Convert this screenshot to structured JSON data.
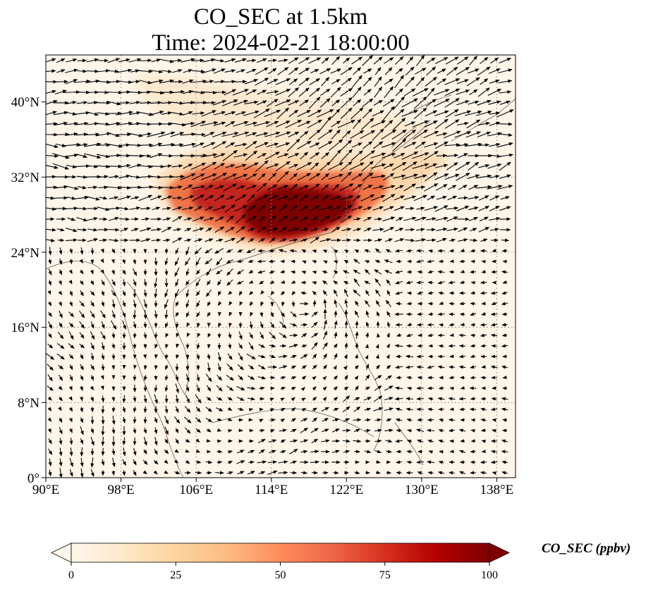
{
  "title": {
    "line1": "CO_SEC at 1.5km",
    "line2": "Time: 2024-02-21 18:00:00"
  },
  "map": {
    "lon_range": [
      90,
      140
    ],
    "lat_range": [
      0,
      45
    ],
    "lon_ticks": [
      "90°E",
      "98°E",
      "106°E",
      "114°E",
      "122°E",
      "130°E",
      "138°E"
    ],
    "lat_ticks": [
      "0°",
      "8°N",
      "16°N",
      "24°N",
      "32°N",
      "40°N"
    ],
    "gridlines": "dotted",
    "coastlines": true,
    "vectors": "wind"
  },
  "colorbar": {
    "label": "CO_SEC (ppbv)",
    "ticks": [
      "0",
      "25",
      "50",
      "75",
      "100"
    ],
    "range": [
      0,
      100
    ],
    "extend": "both",
    "colormap": "OrRd",
    "colors": [
      "#fff7ec",
      "#fee8c8",
      "#fdd49e",
      "#fdbb84",
      "#fc8d59",
      "#ef6548",
      "#d7301f",
      "#b30000",
      "#7f0000"
    ]
  },
  "plume": {
    "description_shapes": "field",
    "max_color": "#7f0000"
  }
}
